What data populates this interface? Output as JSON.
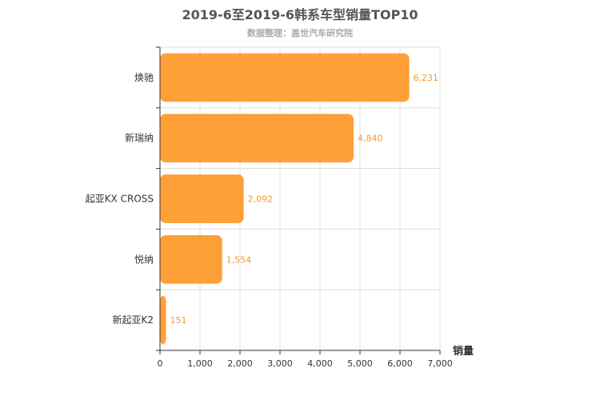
{
  "chart_data": {
    "type": "bar",
    "orientation": "horizontal",
    "title": "2019-6至2019-6韩系车型销量TOP10",
    "subtitle": "数据整理：盖世汽车研究院",
    "xlabel": "销量",
    "categories": [
      "焕驰",
      "新瑞纳",
      "起亚KX CROSS",
      "悦纳",
      "新起亚K2"
    ],
    "values": [
      6231,
      4840,
      2092,
      1554,
      151
    ],
    "value_labels": [
      "6,231",
      "4,840",
      "2,092",
      "1,554",
      "151"
    ],
    "xlim": [
      0,
      7000
    ],
    "ticks": [
      0,
      1000,
      2000,
      3000,
      4000,
      5000,
      6000,
      7000
    ],
    "tick_labels": [
      "0",
      "1,000",
      "2,000",
      "3,000",
      "4,000",
      "5,000",
      "6,000",
      "7,000"
    ],
    "grid": true,
    "bar_color": "#ff9f37",
    "label_color": "#f29b34"
  }
}
